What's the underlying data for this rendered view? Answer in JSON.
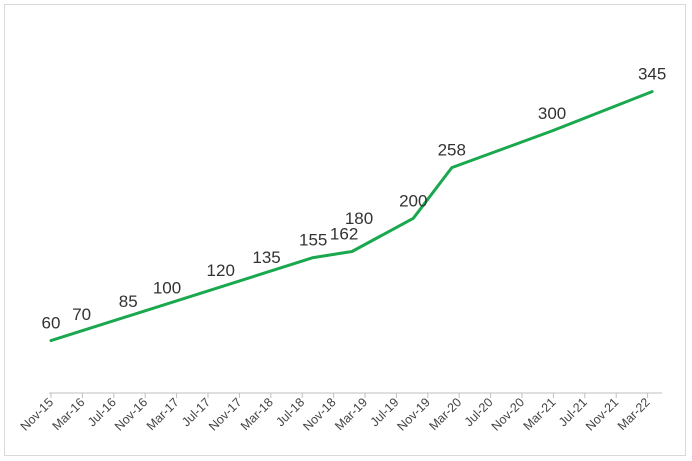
{
  "chart_data": {
    "type": "line",
    "title": "",
    "xlabel": "",
    "ylabel": "",
    "x_tick_labels": [
      "Nov-15",
      "Mar-16",
      "Jul-16",
      "Nov-16",
      "Mar-17",
      "Jul-17",
      "Nov-17",
      "Mar-18",
      "Jul-18",
      "Nov-18",
      "Mar-19",
      "Jul-19",
      "Nov-19",
      "Mar-20",
      "Jul-20",
      "Nov-20",
      "Mar-21",
      "Jul-21",
      "Nov-21",
      "Mar-22"
    ],
    "x_range": [
      "2015-11-01",
      "2022-06-01"
    ],
    "y_range": [
      0,
      380
    ],
    "grid": false,
    "legend": "none",
    "line_color": "#1aa84f",
    "series": [
      {
        "points": [
          {
            "x": "2015-11-01",
            "y": 60
          },
          {
            "x": "2018-09-01",
            "y": 155
          },
          {
            "x": "2019-02-01",
            "y": 162
          },
          {
            "x": "2019-10-01",
            "y": 200
          },
          {
            "x": "2020-03-01",
            "y": 258
          },
          {
            "x": "2021-04-01",
            "y": 300
          },
          {
            "x": "2022-05-01",
            "y": 345
          }
        ],
        "data_labels": [
          {
            "x": "2015-11-01",
            "y": 60,
            "text": "60"
          },
          {
            "x": "2016-03-01",
            "y": 70,
            "text": "70"
          },
          {
            "x": "2016-09-01",
            "y": 85,
            "text": "85"
          },
          {
            "x": "2017-02-01",
            "y": 100,
            "text": "100"
          },
          {
            "x": "2017-09-01",
            "y": 120,
            "text": "120"
          },
          {
            "x": "2018-03-01",
            "y": 135,
            "text": "135"
          },
          {
            "x": "2018-09-01",
            "y": 155,
            "text": "155"
          },
          {
            "x": "2019-01-01",
            "y": 162,
            "text": "162"
          },
          {
            "x": "2019-03-01",
            "y": 180,
            "text": "180"
          },
          {
            "x": "2019-10-01",
            "y": 200,
            "text": "200"
          },
          {
            "x": "2020-03-01",
            "y": 258,
            "text": "258"
          },
          {
            "x": "2021-04-01",
            "y": 300,
            "text": "300"
          },
          {
            "x": "2022-05-01",
            "y": 345,
            "text": "345"
          }
        ]
      }
    ]
  }
}
